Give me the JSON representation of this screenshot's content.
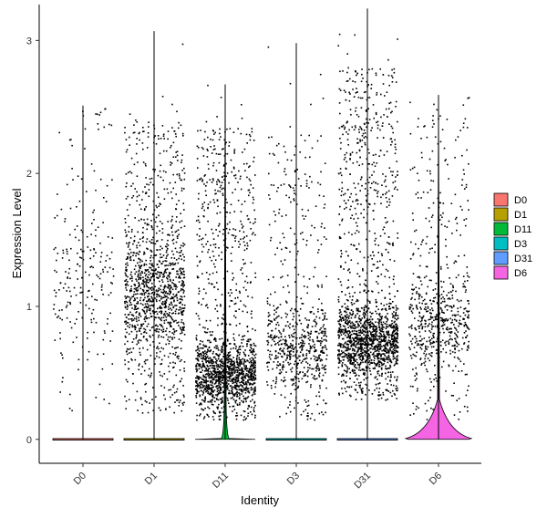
{
  "chart_data": {
    "type": "violin",
    "xlabel": "Identity",
    "ylabel": "Expression Level",
    "categories": [
      "D0",
      "D1",
      "D11",
      "D3",
      "D31",
      "D6"
    ],
    "ylim": [
      -0.18,
      3.27
    ],
    "yticks": [
      0,
      1,
      2,
      3
    ],
    "grid": false,
    "legend_position": "right",
    "colors": {
      "D0": "#F8766D",
      "D1": "#B79F00",
      "D11": "#00BA38",
      "D3": "#00BFC4",
      "D31": "#619CFF",
      "D6": "#F564E3"
    },
    "series": [
      {
        "name": "D0",
        "max": 2.51,
        "violin_peak_width": 0.0,
        "point_count": 220,
        "point_range": [
          0.2,
          2.45
        ],
        "point_center": 1.2
      },
      {
        "name": "D1",
        "max": 3.07,
        "violin_peak_width": 0.0,
        "point_count": 1250,
        "point_range": [
          0.2,
          2.4
        ],
        "point_center": 1.1
      },
      {
        "name": "D11",
        "max": 2.67,
        "violin_peak_width": 0.05,
        "point_count": 1600,
        "point_range": [
          0.15,
          2.35
        ],
        "point_center": 0.5
      },
      {
        "name": "D3",
        "max": 2.98,
        "violin_peak_width": 0.0,
        "point_count": 700,
        "point_range": [
          0.15,
          2.3
        ],
        "point_center": 0.7
      },
      {
        "name": "D31",
        "max": 3.24,
        "violin_peak_width": 0.0,
        "point_count": 1900,
        "point_range": [
          0.3,
          2.8
        ],
        "point_center": 0.75
      },
      {
        "name": "D6",
        "max": 2.59,
        "violin_peak_width": 0.45,
        "point_count": 650,
        "point_range": [
          0.15,
          2.45
        ],
        "point_center": 0.9
      }
    ]
  }
}
